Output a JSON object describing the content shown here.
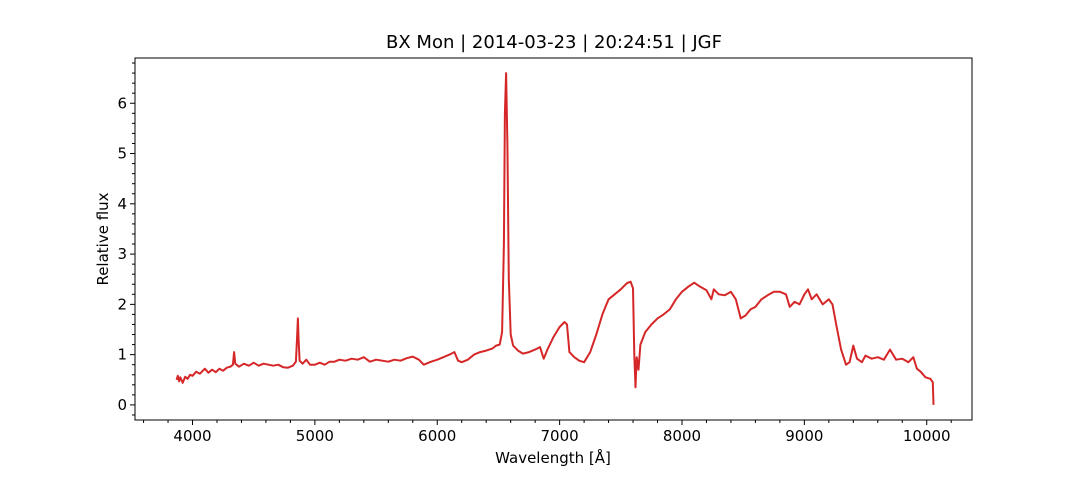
{
  "chart_data": {
    "type": "line",
    "title": "BX Mon | 2014-03-23 | 20:24:51 | JGF",
    "xlabel": "Wavelength [Å]",
    "ylabel": "Relative flux",
    "xlim": [
      3530,
      10370
    ],
    "ylim": [
      -0.3,
      6.9
    ],
    "x_ticks": [
      4000,
      5000,
      6000,
      7000,
      8000,
      9000,
      10000
    ],
    "y_ticks": [
      0,
      1,
      2,
      3,
      4,
      5,
      6
    ],
    "grid": false,
    "legend": "none",
    "series": [
      {
        "color": "#d62728",
        "points": [
          [
            3870,
            0.5
          ],
          [
            3880,
            0.58
          ],
          [
            3890,
            0.47
          ],
          [
            3900,
            0.55
          ],
          [
            3920,
            0.44
          ],
          [
            3940,
            0.56
          ],
          [
            3960,
            0.52
          ],
          [
            3980,
            0.6
          ],
          [
            4000,
            0.58
          ],
          [
            4030,
            0.66
          ],
          [
            4060,
            0.62
          ],
          [
            4100,
            0.72
          ],
          [
            4130,
            0.64
          ],
          [
            4160,
            0.7
          ],
          [
            4190,
            0.65
          ],
          [
            4220,
            0.72
          ],
          [
            4250,
            0.68
          ],
          [
            4280,
            0.74
          ],
          [
            4310,
            0.76
          ],
          [
            4330,
            0.8
          ],
          [
            4340,
            1.05
          ],
          [
            4350,
            0.82
          ],
          [
            4380,
            0.76
          ],
          [
            4420,
            0.82
          ],
          [
            4460,
            0.78
          ],
          [
            4500,
            0.84
          ],
          [
            4540,
            0.78
          ],
          [
            4580,
            0.82
          ],
          [
            4620,
            0.8
          ],
          [
            4660,
            0.78
          ],
          [
            4700,
            0.8
          ],
          [
            4740,
            0.75
          ],
          [
            4780,
            0.74
          ],
          [
            4820,
            0.78
          ],
          [
            4845,
            0.86
          ],
          [
            4855,
            1.35
          ],
          [
            4861,
            1.72
          ],
          [
            4867,
            1.3
          ],
          [
            4875,
            0.88
          ],
          [
            4900,
            0.82
          ],
          [
            4930,
            0.9
          ],
          [
            4960,
            0.8
          ],
          [
            5000,
            0.8
          ],
          [
            5040,
            0.84
          ],
          [
            5080,
            0.8
          ],
          [
            5120,
            0.86
          ],
          [
            5160,
            0.86
          ],
          [
            5200,
            0.9
          ],
          [
            5250,
            0.88
          ],
          [
            5300,
            0.92
          ],
          [
            5350,
            0.9
          ],
          [
            5400,
            0.95
          ],
          [
            5450,
            0.86
          ],
          [
            5500,
            0.9
          ],
          [
            5550,
            0.88
          ],
          [
            5600,
            0.86
          ],
          [
            5650,
            0.9
          ],
          [
            5700,
            0.88
          ],
          [
            5750,
            0.93
          ],
          [
            5800,
            0.96
          ],
          [
            5850,
            0.9
          ],
          [
            5890,
            0.8
          ],
          [
            5950,
            0.86
          ],
          [
            6000,
            0.9
          ],
          [
            6050,
            0.95
          ],
          [
            6100,
            1.0
          ],
          [
            6140,
            1.05
          ],
          [
            6170,
            0.88
          ],
          [
            6200,
            0.85
          ],
          [
            6250,
            0.9
          ],
          [
            6300,
            1.0
          ],
          [
            6350,
            1.05
          ],
          [
            6400,
            1.08
          ],
          [
            6450,
            1.12
          ],
          [
            6480,
            1.18
          ],
          [
            6510,
            1.2
          ],
          [
            6530,
            1.45
          ],
          [
            6545,
            3.2
          ],
          [
            6553,
            5.8
          ],
          [
            6563,
            6.6
          ],
          [
            6573,
            5.2
          ],
          [
            6585,
            2.5
          ],
          [
            6600,
            1.4
          ],
          [
            6620,
            1.18
          ],
          [
            6660,
            1.08
          ],
          [
            6700,
            1.02
          ],
          [
            6750,
            1.05
          ],
          [
            6800,
            1.1
          ],
          [
            6840,
            1.15
          ],
          [
            6870,
            0.92
          ],
          [
            6900,
            1.1
          ],
          [
            6950,
            1.35
          ],
          [
            7000,
            1.55
          ],
          [
            7040,
            1.65
          ],
          [
            7060,
            1.6
          ],
          [
            7080,
            1.05
          ],
          [
            7120,
            0.95
          ],
          [
            7160,
            0.88
          ],
          [
            7200,
            0.85
          ],
          [
            7250,
            1.05
          ],
          [
            7300,
            1.4
          ],
          [
            7350,
            1.8
          ],
          [
            7400,
            2.1
          ],
          [
            7450,
            2.2
          ],
          [
            7500,
            2.3
          ],
          [
            7550,
            2.42
          ],
          [
            7580,
            2.45
          ],
          [
            7600,
            2.32
          ],
          [
            7610,
            1.0
          ],
          [
            7620,
            0.35
          ],
          [
            7630,
            0.95
          ],
          [
            7645,
            0.7
          ],
          [
            7660,
            1.2
          ],
          [
            7700,
            1.45
          ],
          [
            7750,
            1.6
          ],
          [
            7800,
            1.72
          ],
          [
            7850,
            1.8
          ],
          [
            7900,
            1.9
          ],
          [
            7950,
            2.1
          ],
          [
            8000,
            2.25
          ],
          [
            8050,
            2.35
          ],
          [
            8100,
            2.43
          ],
          [
            8150,
            2.35
          ],
          [
            8200,
            2.28
          ],
          [
            8240,
            2.1
          ],
          [
            8260,
            2.3
          ],
          [
            8300,
            2.2
          ],
          [
            8350,
            2.18
          ],
          [
            8400,
            2.25
          ],
          [
            8440,
            2.1
          ],
          [
            8480,
            1.72
          ],
          [
            8520,
            1.78
          ],
          [
            8560,
            1.9
          ],
          [
            8600,
            1.95
          ],
          [
            8650,
            2.1
          ],
          [
            8700,
            2.18
          ],
          [
            8750,
            2.25
          ],
          [
            8800,
            2.25
          ],
          [
            8850,
            2.2
          ],
          [
            8880,
            1.95
          ],
          [
            8920,
            2.05
          ],
          [
            8960,
            2.0
          ],
          [
            9000,
            2.2
          ],
          [
            9030,
            2.3
          ],
          [
            9060,
            2.1
          ],
          [
            9100,
            2.2
          ],
          [
            9150,
            2.0
          ],
          [
            9200,
            2.1
          ],
          [
            9230,
            2.0
          ],
          [
            9260,
            1.6
          ],
          [
            9300,
            1.1
          ],
          [
            9340,
            0.8
          ],
          [
            9370,
            0.85
          ],
          [
            9400,
            1.18
          ],
          [
            9430,
            0.92
          ],
          [
            9470,
            0.85
          ],
          [
            9500,
            0.98
          ],
          [
            9550,
            0.92
          ],
          [
            9600,
            0.95
          ],
          [
            9650,
            0.9
          ],
          [
            9700,
            1.1
          ],
          [
            9750,
            0.9
          ],
          [
            9800,
            0.92
          ],
          [
            9850,
            0.85
          ],
          [
            9890,
            0.95
          ],
          [
            9920,
            0.72
          ],
          [
            9950,
            0.66
          ],
          [
            9990,
            0.55
          ],
          [
            10030,
            0.52
          ],
          [
            10050,
            0.45
          ],
          [
            10055,
            0.0
          ]
        ]
      }
    ]
  }
}
